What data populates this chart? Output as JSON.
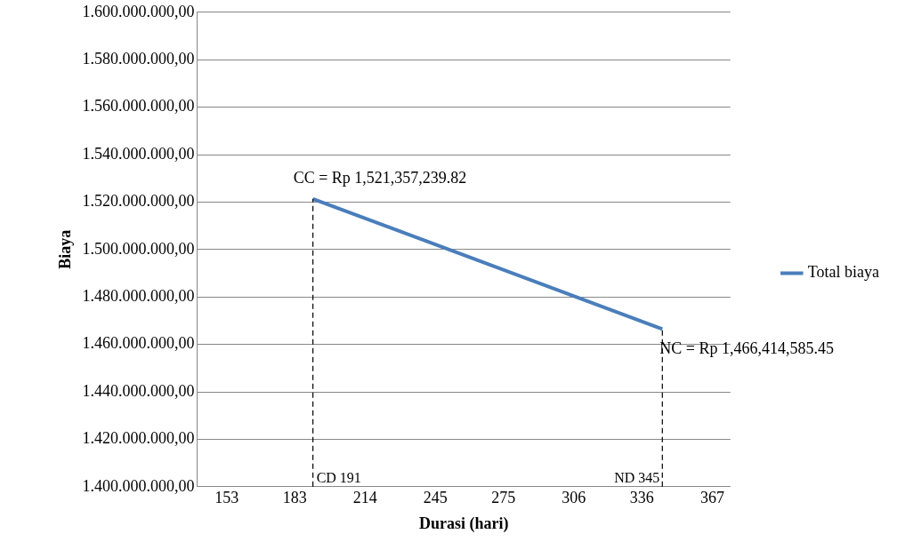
{
  "chart_data": {
    "type": "line",
    "xlabel": "Durasi (hari)",
    "ylabel": "Biaya",
    "x": [
      191,
      345
    ],
    "series": [
      {
        "name": "Total biaya",
        "color": "#4a7ebb",
        "values": [
          1521357239.82,
          1466414585.45
        ]
      }
    ],
    "xlim": [
      140,
      375
    ],
    "xticks": [
      153,
      183,
      214,
      245,
      275,
      306,
      336,
      367
    ],
    "ylim": [
      1400000000,
      1600000000
    ],
    "yticks": [
      {
        "value": 1400000000,
        "label": "1.400.000.000,00"
      },
      {
        "value": 1420000000,
        "label": "1.420.000.000,00"
      },
      {
        "value": 1440000000,
        "label": "1.440.000.000,00"
      },
      {
        "value": 1460000000,
        "label": "1.460.000.000,00"
      },
      {
        "value": 1480000000,
        "label": "1.480.000.000,00"
      },
      {
        "value": 1500000000,
        "label": "1.500.000.000,00"
      },
      {
        "value": 1520000000,
        "label": "1.520.000.000,00"
      },
      {
        "value": 1540000000,
        "label": "1.540.000.000,00"
      },
      {
        "value": 1560000000,
        "label": "1.560.000.000,00"
      },
      {
        "value": 1580000000,
        "label": "1.580.000.000,00"
      },
      {
        "value": 1600000000,
        "label": "1.600.000.000,00"
      }
    ],
    "ref_lines": [
      {
        "axis": "x",
        "value": 191,
        "label": "CD 191",
        "line_style": "dashed",
        "color": "#000000"
      },
      {
        "axis": "x",
        "value": 345,
        "label": "ND 345",
        "line_style": "dashed",
        "color": "#000000"
      }
    ],
    "annotations": [
      {
        "text": "CC = Rp 1,521,357,239.82",
        "x": 191,
        "y": 1521357239.82
      },
      {
        "text": "NC = Rp 1,466,414,585.45",
        "x": 345,
        "y": 1466414585.45
      }
    ],
    "grid": "y",
    "legend": "right",
    "marker": "none",
    "line_style": "solid"
  }
}
